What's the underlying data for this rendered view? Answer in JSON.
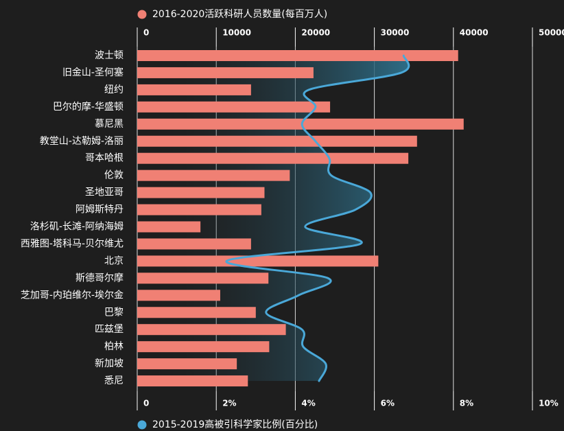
{
  "chart_data": {
    "type": "bar",
    "categories": [
      "波士顿",
      "旧金山-圣何塞",
      "纽约",
      "巴尔的摩-华盛顿",
      "慕尼黑",
      "教堂山-达勒姆-洛丽",
      "哥本哈根",
      "伦敦",
      "圣地亚哥",
      "阿姆斯特丹",
      "洛杉矶-长滩-阿纳海姆",
      "西雅图-塔科马-贝尔维尤",
      "北京",
      "斯德哥尔摩",
      "芝加哥-内珀维尔-埃尔金",
      "巴黎",
      "匹兹堡",
      "柏林",
      "新加坡",
      "悉尼"
    ],
    "series": [
      {
        "name": "2016-2020活跃科研人员数量(每百万人)",
        "color": "#f08074",
        "values": [
          40600,
          22300,
          14400,
          24400,
          41300,
          35400,
          34300,
          19300,
          16100,
          15700,
          8000,
          14400,
          30500,
          16600,
          10500,
          15000,
          18800,
          16700,
          12600,
          14000
        ]
      },
      {
        "name": "2015-2019高被引科学家比例(百分比)",
        "color": "#4aa8d8",
        "type": "line",
        "axis": "x2",
        "values": [
          6.74,
          6.68,
          4.34,
          4.51,
          4.17,
          4.51,
          4.86,
          4.91,
          5.9,
          5.52,
          4.25,
          5.64,
          2.26,
          4.83,
          4.08,
          3.26,
          4.17,
          4.2,
          4.77,
          4.6
        ]
      }
    ],
    "xlim": [
      0,
      50000
    ],
    "xticks": [
      0,
      10000,
      20000,
      30000,
      40000,
      50000
    ],
    "x2lim": [
      0,
      10
    ],
    "x2ticks": [
      0,
      {
        "value": 2,
        "label": "2%"
      },
      {
        "value": 4,
        "label": "4%"
      },
      {
        "value": 6,
        "label": "6%"
      },
      {
        "value": 8,
        "label": "8%"
      },
      {
        "value": 10,
        "label": "10%"
      }
    ],
    "grid": true
  }
}
